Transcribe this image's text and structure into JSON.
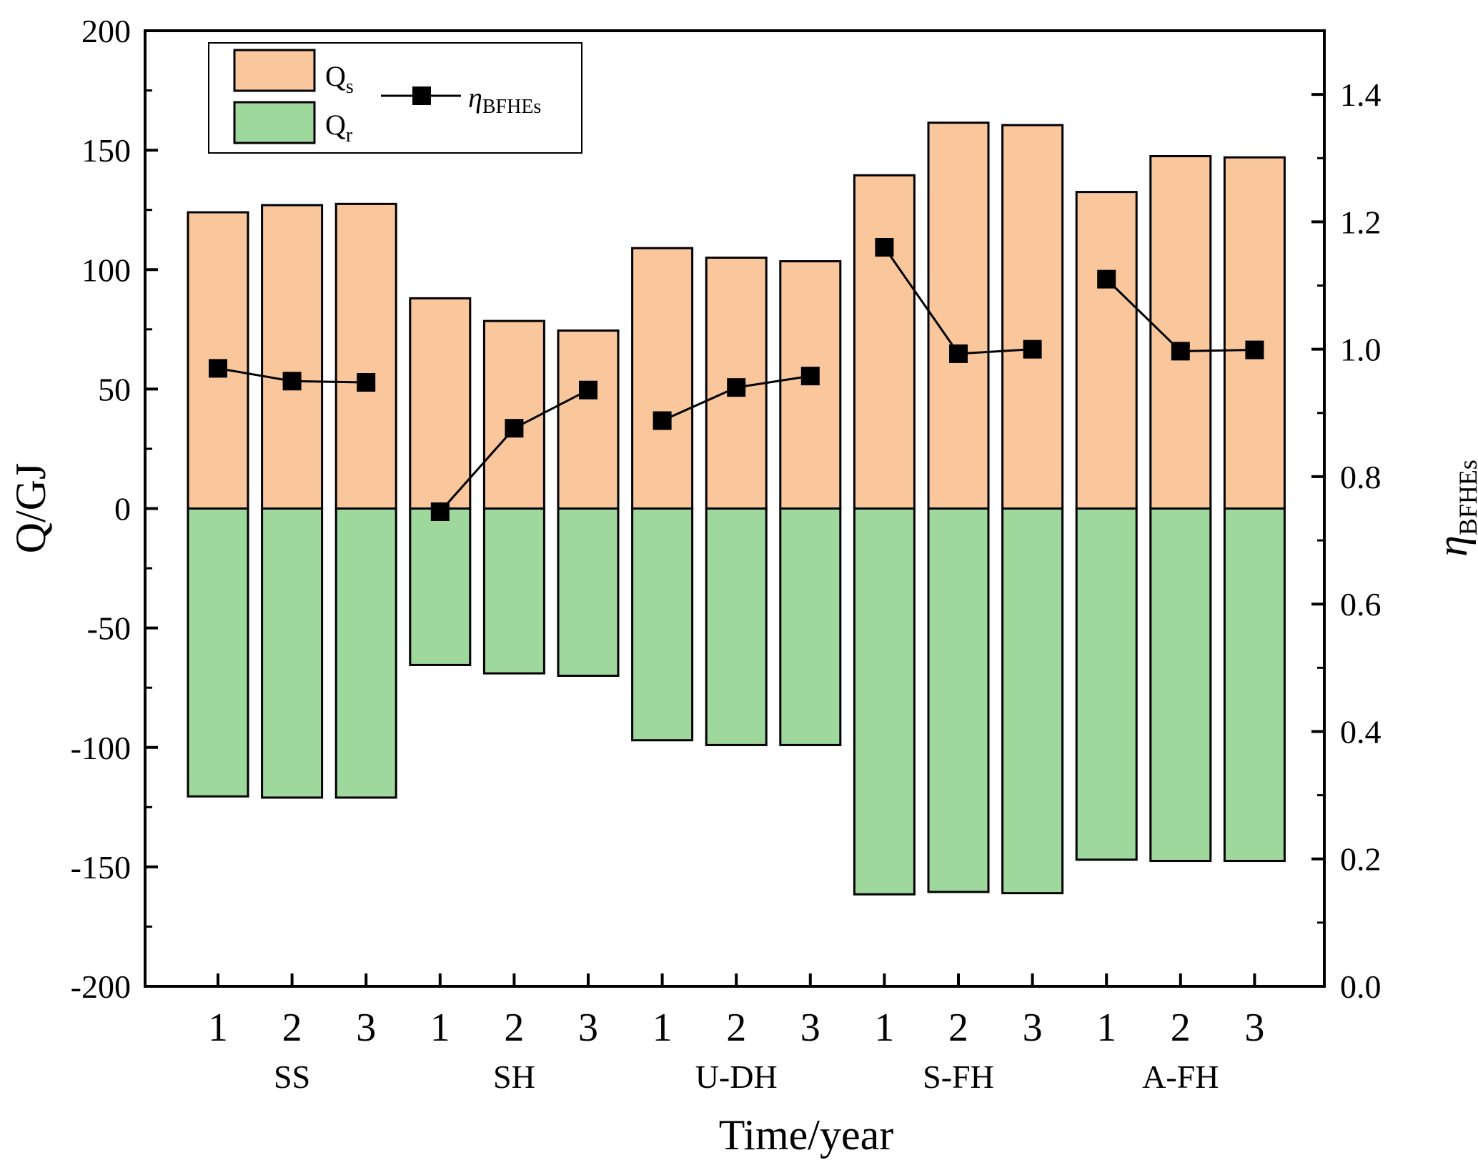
{
  "chart_data": {
    "type": "bar",
    "xlabel": "Time/year",
    "ylabel": "Q/GJ",
    "y2label": "η",
    "y2label_sub": "BFHEs",
    "ylim": [
      -200,
      200
    ],
    "y2lim": [
      0.0,
      1.5
    ],
    "yticks": [
      "200",
      "150",
      "100",
      "50",
      "0",
      "-50",
      "-100",
      "-150",
      "-200"
    ],
    "y2ticks": [
      "1.4",
      "1.2",
      "1.0",
      "0.8",
      "0.6",
      "0.4",
      "0.2",
      "0.0"
    ],
    "y2tick_values": [
      1.4,
      1.2,
      1.0,
      0.8,
      0.6,
      0.4,
      0.2,
      0.0
    ],
    "categories": [
      "1",
      "2",
      "3",
      "1",
      "2",
      "3",
      "1",
      "2",
      "3",
      "1",
      "2",
      "3",
      "1",
      "2",
      "3"
    ],
    "groups": [
      "SS",
      "SH",
      "U-DH",
      "S-FH",
      "A-FH"
    ],
    "series": [
      {
        "name": "Q",
        "name_sub": "s",
        "color": "#f9c79b",
        "axis": "left",
        "values": [
          124,
          127,
          127.5,
          88,
          78.5,
          74.5,
          109,
          105,
          103.5,
          139.5,
          161.5,
          160.5,
          132.5,
          147.5,
          147
        ]
      },
      {
        "name": "Q",
        "name_sub": "r",
        "color": "#9fd89c",
        "axis": "left",
        "values": [
          -120.5,
          -121,
          -121,
          -65.5,
          -69,
          -70,
          -97,
          -99,
          -99,
          -161.5,
          -160.5,
          -161,
          -147,
          -147.5,
          -147.5
        ]
      },
      {
        "name": "η",
        "name_sub": "BFHEs",
        "color": "#000000",
        "axis": "right",
        "marker": "square",
        "values": [
          0.97,
          0.95,
          0.948,
          0.745,
          0.876,
          0.936,
          0.888,
          0.94,
          0.958,
          1.16,
          0.993,
          1.0,
          1.11,
          0.997,
          0.999
        ]
      }
    ],
    "legend": "top-left"
  }
}
